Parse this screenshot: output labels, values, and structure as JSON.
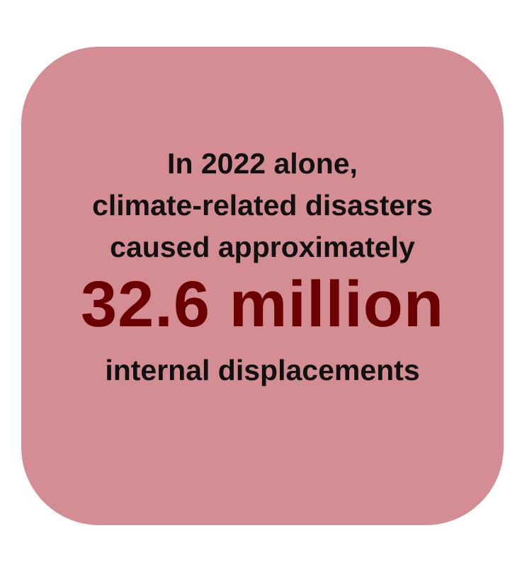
{
  "card": {
    "line1": "In 2022 alone,",
    "line2": "climate-related disasters",
    "line3": "caused approximately",
    "highlight": "32.6 million",
    "line5": "internal displacements"
  },
  "colors": {
    "background": "#ffffff",
    "card": "#d58d94",
    "text": "#111111",
    "highlight": "#6a0000"
  }
}
